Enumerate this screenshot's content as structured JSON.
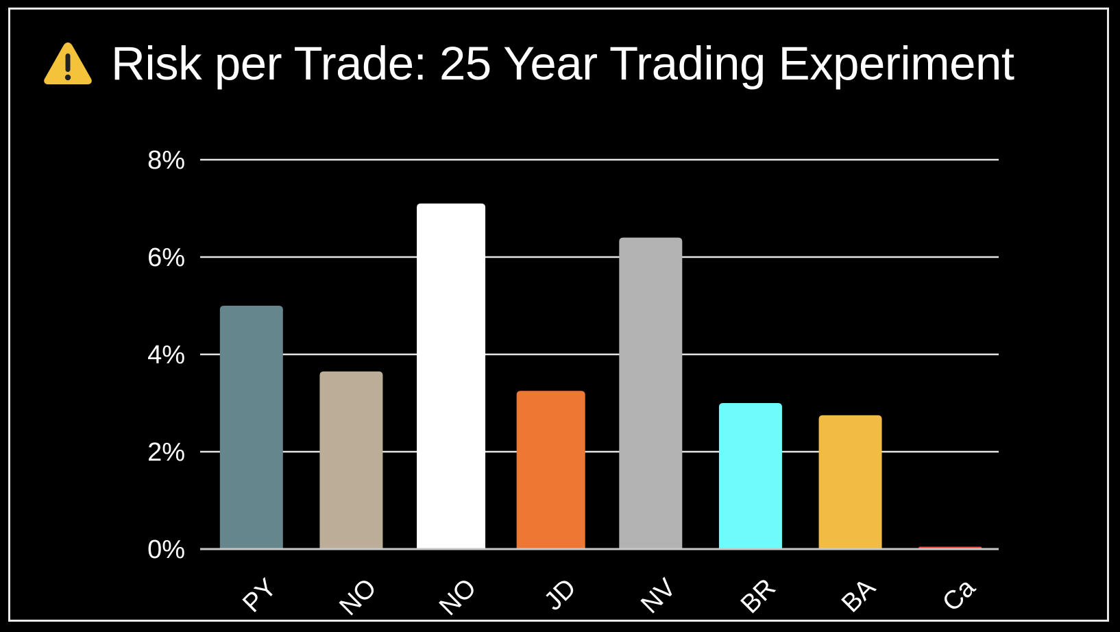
{
  "chart_data": {
    "type": "bar",
    "title": "Risk per Trade: 25 Year Trading Experiment",
    "title_icon": "warning-icon",
    "categories": [
      "PY",
      "NO",
      "NO",
      "JD",
      "NV",
      "BR",
      "BA",
      "Ca"
    ],
    "values": [
      5.0,
      3.65,
      7.1,
      3.25,
      6.4,
      3.0,
      2.75,
      0.05
    ],
    "colors": [
      "#65868c",
      "#bbad98",
      "#ffffff",
      "#ee7734",
      "#b3b3b3",
      "#6ffbfc",
      "#f2bb44",
      "#e8463a"
    ],
    "ylim": [
      0,
      8
    ],
    "yticks": [
      0,
      2,
      4,
      6,
      8
    ],
    "ytick_labels": [
      "0%",
      "2%",
      "4%",
      "6%",
      "8%"
    ],
    "xlabel": "",
    "ylabel": "",
    "grid": true,
    "legend": "none"
  }
}
